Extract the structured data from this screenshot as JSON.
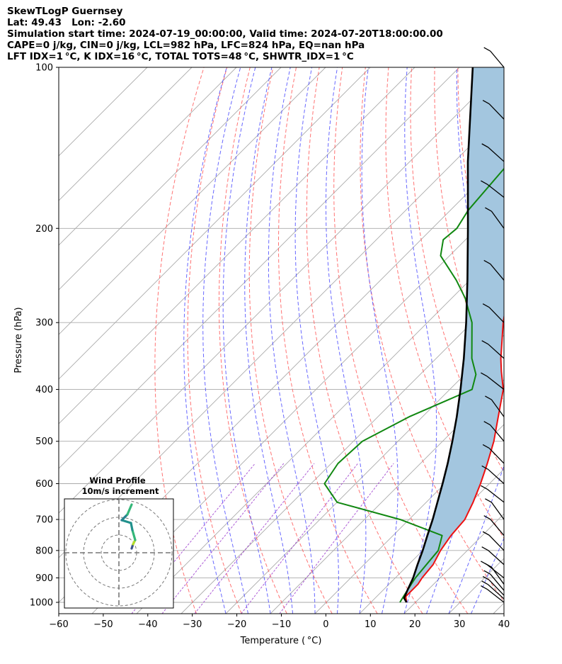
{
  "header": {
    "line1": "SkewTLogP Guernsey",
    "line2": "Lat: 49.43   Lon: -2.60",
    "line3": "Simulation start time: 2024-07-19_00:00:00, Valid time: 2024-07-20T18:00:00.00",
    "line4": "CAPE=0 j/kg, CIN=0 j/kg, LCL=982 hPa, LFC=824 hPa, EQ=nan hPa",
    "line5": "LFT IDX=1 °C, K IDX=16 °C, TOTAL TOTS=48 °C, SHWTR_IDX=1 °C"
  },
  "colors": {
    "temperature": "#ee1111",
    "dewpoint": "#118811",
    "parcel": "#000000",
    "shade": "#a3c6df",
    "dry_adiabat": "#ff5a5a",
    "moist_adiabat": "#4d4dff",
    "mixing_ratio": "#9933cc",
    "isotherm": "#aaaaaa"
  },
  "chart_data": {
    "type": "line",
    "title": "SkewTLogP Guernsey",
    "xlabel": "Temperature ( °C)",
    "ylabel": "Pressure (hPa)",
    "xlim": [
      -60,
      40
    ],
    "ylim": [
      1050,
      100
    ],
    "y_scale": "log",
    "x_ticks": [
      "−60",
      "−50",
      "−40",
      "−30",
      "−20",
      "−10",
      "0",
      "10",
      "20",
      "30",
      "40"
    ],
    "y_ticks": [
      "100",
      "200",
      "300",
      "400",
      "500",
      "600",
      "700",
      "800",
      "900",
      "1000"
    ],
    "grid": true,
    "series": [
      {
        "key": "temperature",
        "points": [
          [
            1000,
            18.0
          ],
          [
            975,
            16.5
          ],
          [
            950,
            16.5
          ],
          [
            925,
            16.5
          ],
          [
            900,
            16.0
          ],
          [
            850,
            15.5
          ],
          [
            800,
            14.0
          ],
          [
            750,
            13.0
          ],
          [
            700,
            12.5
          ],
          [
            650,
            10.5
          ],
          [
            600,
            8.0
          ],
          [
            550,
            5.0
          ],
          [
            500,
            1.5
          ],
          [
            450,
            -3.0
          ],
          [
            400,
            -8.0
          ],
          [
            370,
            -12.5
          ],
          [
            350,
            -15.5
          ],
          [
            300,
            -23.0
          ],
          [
            280,
            -26.0
          ],
          [
            260,
            -30.0
          ],
          [
            250,
            -31.0
          ],
          [
            225,
            -32.5
          ],
          [
            200,
            -33.0
          ],
          [
            175,
            -36.0
          ],
          [
            150,
            -38.0
          ],
          [
            125,
            -41.0
          ],
          [
            100,
            -45.0
          ]
        ]
      },
      {
        "key": "dewpoint",
        "points": [
          [
            1000,
            16.5
          ],
          [
            975,
            16.0
          ],
          [
            950,
            15.5
          ],
          [
            925,
            15.0
          ],
          [
            900,
            14.5
          ],
          [
            850,
            14.0
          ],
          [
            800,
            13.5
          ],
          [
            750,
            11.0
          ],
          [
            700,
            -2.0
          ],
          [
            650,
            -20.0
          ],
          [
            600,
            -27.0
          ],
          [
            550,
            -28.5
          ],
          [
            500,
            -28.0
          ],
          [
            450,
            -23.0
          ],
          [
            400,
            -15.0
          ],
          [
            375,
            -17.5
          ],
          [
            350,
            -22.0
          ],
          [
            300,
            -30.0
          ],
          [
            270,
            -37.0
          ],
          [
            250,
            -43.0
          ],
          [
            225,
            -52.0
          ],
          [
            210,
            -55.0
          ],
          [
            200,
            -54.5
          ],
          [
            185,
            -56.0
          ],
          [
            150,
            -57.5
          ],
          [
            125,
            -60.0
          ],
          [
            100,
            -64.0
          ]
        ]
      },
      {
        "key": "parcel",
        "points": [
          [
            1000,
            18.0
          ],
          [
            982,
            16.5
          ],
          [
            950,
            15.5
          ],
          [
            900,
            14.0
          ],
          [
            850,
            12.0
          ],
          [
            800,
            10.0
          ],
          [
            750,
            7.7
          ],
          [
            700,
            5.3
          ],
          [
            650,
            2.5
          ],
          [
            600,
            -0.5
          ],
          [
            550,
            -3.9
          ],
          [
            500,
            -7.8
          ],
          [
            450,
            -12.3
          ],
          [
            400,
            -17.6
          ],
          [
            350,
            -23.8
          ],
          [
            300,
            -31.3
          ],
          [
            250,
            -40.5
          ],
          [
            200,
            -52.0
          ],
          [
            150,
            -67.0
          ],
          [
            100,
            -87.0
          ]
        ]
      }
    ],
    "wind_barbs_hpa": [
      1000,
      985,
      970,
      950,
      925,
      900,
      850,
      800,
      750,
      700,
      650,
      600,
      550,
      500,
      450,
      400,
      350,
      300,
      250,
      200,
      175,
      150,
      125,
      100
    ]
  },
  "hodograph": {
    "title": "Wind Profile",
    "subtitle": "10m/s increment"
  }
}
